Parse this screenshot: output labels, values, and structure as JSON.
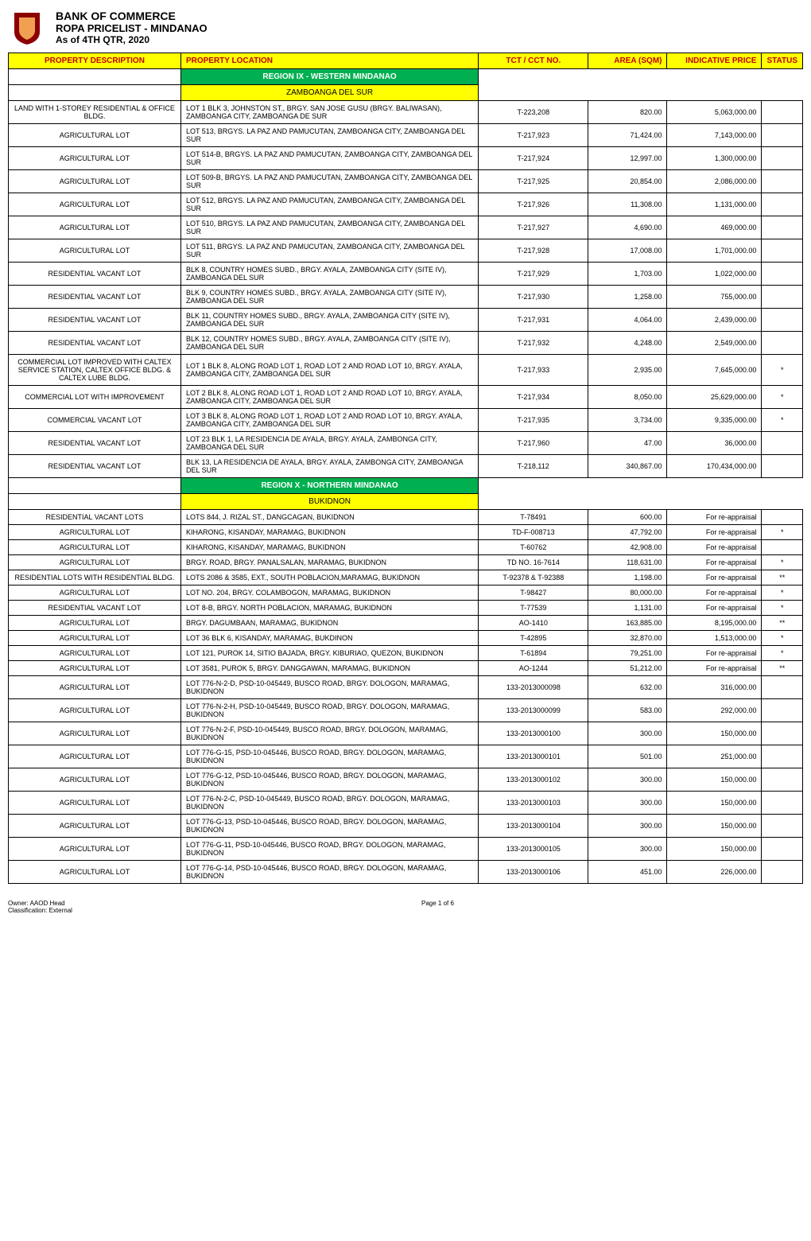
{
  "header": {
    "bank_name": "BANK OF COMMERCE",
    "doc_title": "ROPA PRICELIST - MINDANAO",
    "as_of": "As of 4TH QTR, 2020",
    "logo_colors": {
      "shield": "#8b0000",
      "inner": "#f0a050"
    }
  },
  "columns": [
    "PROPERTY DESCRIPTION",
    "PROPERTY LOCATION",
    "TCT / CCT NO.",
    "AREA (SQM)",
    "INDICATIVE PRICE",
    "STATUS"
  ],
  "sections": [
    {
      "region": "REGION IX - WESTERN MINDANAO",
      "subregion": "ZAMBOANGA DEL SUR",
      "rows": [
        {
          "desc": "LAND WITH 1-STOREY RESIDENTIAL & OFFICE BLDG.",
          "loc": "LOT 1 BLK 3, JOHNSTON ST., BRGY. SAN JOSE GUSU (BRGY. BALIWASAN), ZAMBOANGA CITY, ZAMBOANGA DE SUR",
          "tct": "T-223,208",
          "area": "820.00",
          "price": "5,063,000.00",
          "status": ""
        },
        {
          "desc": "AGRICULTURAL LOT",
          "loc": "LOT 513, BRGYS. LA PAZ AND PAMUCUTAN, ZAMBOANGA CITY, ZAMBOANGA DEL SUR",
          "tct": "T-217,923",
          "area": "71,424.00",
          "price": "7,143,000.00",
          "status": ""
        },
        {
          "desc": "AGRICULTURAL LOT",
          "loc": "LOT 514-B, BRGYS. LA PAZ AND PAMUCUTAN, ZAMBOANGA CITY, ZAMBOANGA DEL SUR",
          "tct": "T-217,924",
          "area": "12,997.00",
          "price": "1,300,000.00",
          "status": ""
        },
        {
          "desc": "AGRICULTURAL LOT",
          "loc": "LOT 509-B, BRGYS. LA PAZ AND PAMUCUTAN, ZAMBOANGA CITY, ZAMBOANGA DEL SUR",
          "tct": "T-217,925",
          "area": "20,854.00",
          "price": "2,086,000.00",
          "status": ""
        },
        {
          "desc": "AGRICULTURAL LOT",
          "loc": "LOT 512, BRGYS. LA PAZ AND PAMUCUTAN, ZAMBOANGA CITY, ZAMBOANGA DEL SUR",
          "tct": "T-217,926",
          "area": "11,308.00",
          "price": "1,131,000.00",
          "status": ""
        },
        {
          "desc": "AGRICULTURAL LOT",
          "loc": "LOT 510, BRGYS. LA PAZ AND PAMUCUTAN, ZAMBOANGA CITY, ZAMBOANGA DEL SUR",
          "tct": "T-217,927",
          "area": "4,690.00",
          "price": "469,000.00",
          "status": ""
        },
        {
          "desc": "AGRICULTURAL LOT",
          "loc": "LOT 511, BRGYS. LA PAZ AND PAMUCUTAN, ZAMBOANGA CITY, ZAMBOANGA DEL SUR",
          "tct": "T-217,928",
          "area": "17,008.00",
          "price": "1,701,000.00",
          "status": ""
        },
        {
          "desc": "RESIDENTIAL VACANT LOT",
          "loc": "BLK 8, COUNTRY HOMES SUBD., BRGY. AYALA, ZAMBOANGA CITY (SITE IV), ZAMBOANGA DEL SUR",
          "tct": "T-217,929",
          "area": "1,703.00",
          "price": "1,022,000.00",
          "status": ""
        },
        {
          "desc": "RESIDENTIAL VACANT LOT",
          "loc": "BLK 9, COUNTRY HOMES SUBD., BRGY. AYALA, ZAMBOANGA CITY (SITE IV), ZAMBOANGA DEL SUR",
          "tct": "T-217,930",
          "area": "1,258.00",
          "price": "755,000.00",
          "status": ""
        },
        {
          "desc": "RESIDENTIAL VACANT LOT",
          "loc": "BLK  11, COUNTRY HOMES SUBD., BRGY. AYALA, ZAMBOANGA CITY (SITE IV), ZAMBOANGA DEL SUR",
          "tct": "T-217,931",
          "area": "4,064.00",
          "price": "2,439,000.00",
          "status": ""
        },
        {
          "desc": "RESIDENTIAL VACANT LOT",
          "loc": "BLK 12, COUNTRY HOMES SUBD., BRGY. AYALA, ZAMBOANGA CITY (SITE IV), ZAMBOANGA DEL SUR",
          "tct": "T-217,932",
          "area": "4,248.00",
          "price": "2,549,000.00",
          "status": ""
        },
        {
          "desc": "COMMERCIAL LOT  IMPROVED WITH CALTEX SERVICE STATION, CALTEX OFFICE BLDG. & CALTEX LUBE BLDG.",
          "loc": "LOT 1 BLK 8, ALONG ROAD LOT 1, ROAD LOT 2 AND ROAD LOT 10, BRGY. AYALA, ZAMBOANGA CITY, ZAMBOANGA DEL SUR",
          "tct": "T-217,933",
          "area": "2,935.00",
          "price": "7,645,000.00",
          "status": "*"
        },
        {
          "desc": "COMMERCIAL LOT WITH IMPROVEMENT",
          "loc": "LOT 2 BLK 8, ALONG ROAD LOT 1, ROAD LOT 2 AND ROAD LOT 10, BRGY. AYALA, ZAMBOANGA CITY, ZAMBOANGA DEL SUR",
          "tct": "T-217,934",
          "area": "8,050.00",
          "price": "25,629,000.00",
          "status": "*"
        },
        {
          "desc": "COMMERCIAL VACANT LOT",
          "loc": "LOT 3 BLK 8, ALONG ROAD LOT 1, ROAD LOT 2 AND ROAD LOT 10, BRGY. AYALA, ZAMBOANGA CITY, ZAMBOANGA DEL SUR",
          "tct": "T-217,935",
          "area": "3,734.00",
          "price": "9,335,000.00",
          "status": "*"
        },
        {
          "desc": "RESIDENTIAL VACANT LOT",
          "loc": "LOT 23 BLK 1, LA RESIDENCIA DE AYALA, BRGY. AYALA, ZAMBONGA CITY, ZAMBOANGA DEL SUR",
          "tct": "T-217,960",
          "area": "47.00",
          "price": "36,000.00",
          "status": ""
        },
        {
          "desc": "RESIDENTIAL VACANT LOT",
          "loc": "BLK 13, LA RESIDENCIA DE AYALA, BRGY. AYALA, ZAMBONGA CITY, ZAMBOANGA DEL SUR",
          "tct": "T-218,112",
          "area": "340,867.00",
          "price": "170,434,000.00",
          "status": ""
        }
      ]
    },
    {
      "region": "REGION X - NORTHERN MINDANAO",
      "subregion": "BUKIDNON",
      "rows": [
        {
          "desc": "RESIDENTIAL VACANT LOTS",
          "loc": "LOTS 844, J. RIZAL ST., DANGCAGAN, BUKIDNON",
          "tct": "T-78491",
          "area": "600.00",
          "price": "For re-appraisal",
          "status": ""
        },
        {
          "desc": "AGRICULTURAL LOT",
          "loc": "KIHARONG, KISANDAY, MARAMAG, BUKIDNON",
          "tct": "TD-F-008713",
          "area": "47,792.00",
          "price": "For re-appraisal",
          "status": "*"
        },
        {
          "desc": "AGRICULTURAL LOT",
          "loc": "KIHARONG, KISANDAY, MARAMAG, BUKIDNON",
          "tct": "T-60762",
          "area": "42,908.00",
          "price": "For re-appraisal",
          "status": ""
        },
        {
          "desc": "AGRICULTURAL LOT",
          "loc": "BRGY. ROAD, BRGY. PANALSALAN, MARAMAG, BUKIDNON",
          "tct": "TD NO. 16-7614",
          "area": "118,631.00",
          "price": "For re-appraisal",
          "status": "*"
        },
        {
          "desc": "RESIDENTIAL LOTS WITH RESIDENTIAL BLDG.",
          "loc": "LOTS 2086 & 3585, EXT., SOUTH POBLACION,MARAMAG, BUKIDNON",
          "tct": "T-92378 & T-92388",
          "area": "1,198.00",
          "price": "For re-appraisal",
          "status": "**"
        },
        {
          "desc": "AGRICULTURAL LOT",
          "loc": "LOT NO. 204, BRGY. COLAMBOGON, MARAMAG, BUKIDNON",
          "tct": "T-98427",
          "area": "80,000.00",
          "price": "For re-appraisal",
          "status": "*"
        },
        {
          "desc": "RESIDENTIAL VACANT LOT",
          "loc": "LOT 8-B, BRGY. NORTH POBLACION, MARAMAG, BUKIDNON",
          "tct": "T-77539",
          "area": "1,131.00",
          "price": "For re-appraisal",
          "status": "*"
        },
        {
          "desc": "AGRICULTURAL LOT",
          "loc": "BRGY. DAGUMBAAN, MARAMAG, BUKIDNON",
          "tct": "AO-1410",
          "area": "163,885.00",
          "price": "8,195,000.00",
          "status": "**"
        },
        {
          "desc": "AGRICULTURAL LOT",
          "loc": "LOT 36 BLK 6, KISANDAY, MARAMAG, BUKDINON",
          "tct": "T-42895",
          "area": "32,870.00",
          "price": "1,513,000.00",
          "status": "*"
        },
        {
          "desc": "AGRICULTURAL LOT",
          "loc": "LOT 121, PUROK 14, SITIO BAJADA, BRGY. KIBURIAO, QUEZON, BUKIDNON",
          "tct": "T-61894",
          "area": "79,251.00",
          "price": "For re-appraisal",
          "status": "*"
        },
        {
          "desc": "AGRICULTURAL LOT",
          "loc": "LOT 3581, PUROK 5, BRGY. DANGGAWAN, MARAMAG, BUKIDNON",
          "tct": "AO-1244",
          "area": "51,212.00",
          "price": "For re-appraisal",
          "status": "**"
        },
        {
          "desc": "AGRICULTURAL LOT",
          "loc": "LOT 776-N-2-D, PSD-10-045449, BUSCO ROAD, BRGY. DOLOGON, MARAMAG, BUKIDNON",
          "tct": "133-2013000098",
          "area": "632.00",
          "price": "316,000.00",
          "status": ""
        },
        {
          "desc": "AGRICULTURAL LOT",
          "loc": "LOT 776-N-2-H, PSD-10-045449, BUSCO ROAD, BRGY. DOLOGON, MARAMAG, BUKIDNON",
          "tct": "133-2013000099",
          "area": "583.00",
          "price": "292,000.00",
          "status": ""
        },
        {
          "desc": "AGRICULTURAL LOT",
          "loc": "LOT 776-N-2-F, PSD-10-045449, BUSCO ROAD, BRGY. DOLOGON, MARAMAG, BUKIDNON",
          "tct": "133-2013000100",
          "area": "300.00",
          "price": "150,000.00",
          "status": ""
        },
        {
          "desc": "AGRICULTURAL LOT",
          "loc": "LOT 776-G-15, PSD-10-045446, BUSCO ROAD, BRGY. DOLOGON, MARAMAG, BUKIDNON",
          "tct": "133-2013000101",
          "area": "501.00",
          "price": "251,000.00",
          "status": ""
        },
        {
          "desc": "AGRICULTURAL LOT",
          "loc": "LOT 776-G-12, PSD-10-045446, BUSCO ROAD, BRGY. DOLOGON, MARAMAG, BUKIDNON",
          "tct": "133-2013000102",
          "area": "300.00",
          "price": "150,000.00",
          "status": ""
        },
        {
          "desc": "AGRICULTURAL LOT",
          "loc": "LOT 776-N-2-C, PSD-10-045449, BUSCO ROAD, BRGY. DOLOGON, MARAMAG, BUKIDNON",
          "tct": "133-2013000103",
          "area": "300.00",
          "price": "150,000.00",
          "status": ""
        },
        {
          "desc": "AGRICULTURAL LOT",
          "loc": "LOT 776-G-13, PSD-10-045446, BUSCO ROAD, BRGY. DOLOGON, MARAMAG, BUKIDNON",
          "tct": "133-2013000104",
          "area": "300.00",
          "price": "150,000.00",
          "status": ""
        },
        {
          "desc": "AGRICULTURAL LOT",
          "loc": "LOT 776-G-11, PSD-10-045446, BUSCO ROAD, BRGY. DOLOGON, MARAMAG, BUKIDNON",
          "tct": "133-2013000105",
          "area": "300.00",
          "price": "150,000.00",
          "status": ""
        },
        {
          "desc": "AGRICULTURAL LOT",
          "loc": "LOT 776-G-14, PSD-10-045446, BUSCO ROAD, BRGY. DOLOGON, MARAMAG, BUKIDNON",
          "tct": "133-2013000106",
          "area": "451.00",
          "price": "226,000.00",
          "status": ""
        }
      ]
    }
  ],
  "footer": {
    "owner": "Owner: AAOD Head",
    "classification": "Classification: External",
    "page": "Page 1 of 6"
  },
  "styling": {
    "header_bg": "#ffff00",
    "header_fg": "#c00000",
    "region_bg": "#00b050",
    "region_fg": "#ffffff",
    "subregion_bg": "#ffff00",
    "subregion_fg": "#000000",
    "border_color": "#000000",
    "body_bg": "#ffffff",
    "font_size_body": 9,
    "font_size_header": 10
  }
}
